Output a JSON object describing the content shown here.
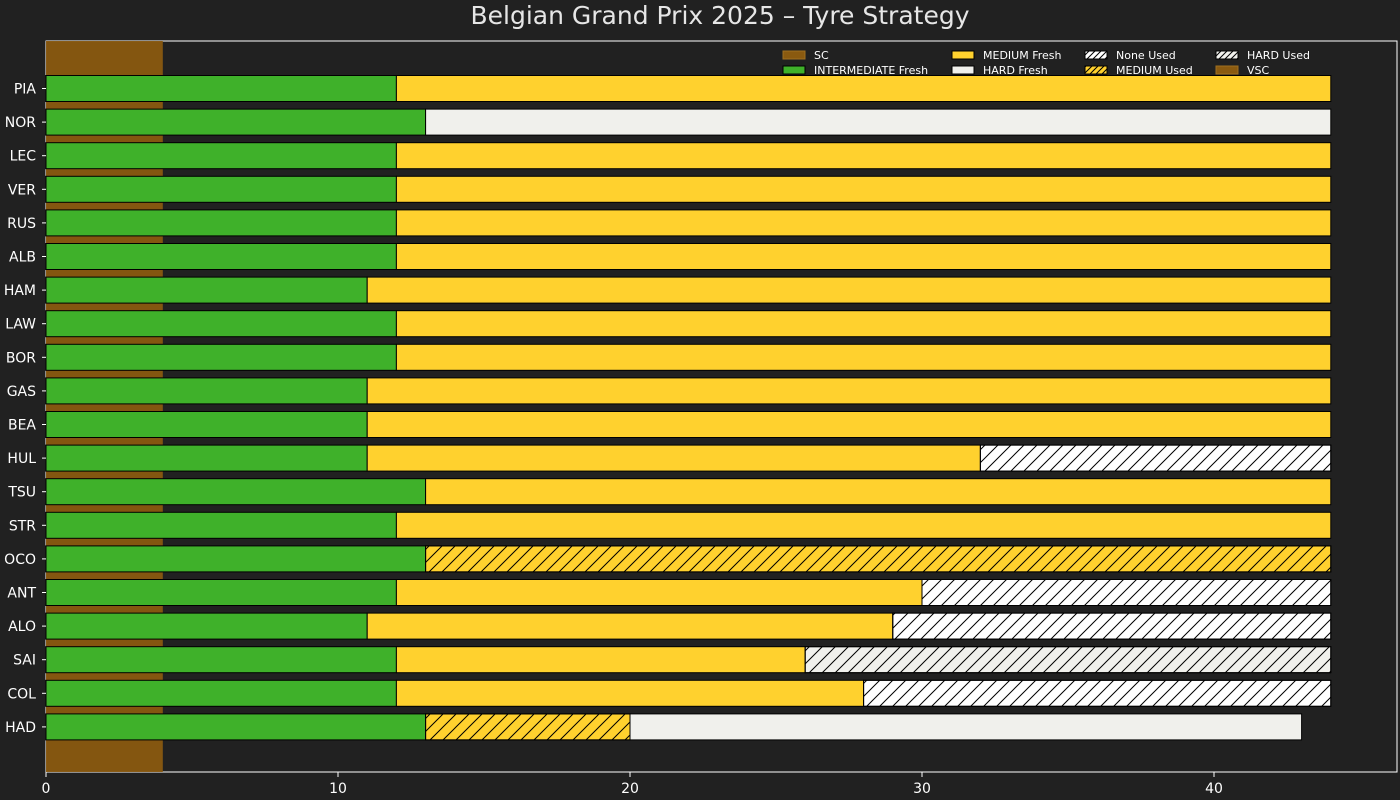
{
  "chart_data": {
    "type": "bar",
    "orientation": "horizontal-stacked",
    "title": "Belgian Grand Prix 2025  –  Tyre Strategy",
    "xlabel": "",
    "ylabel": "",
    "xlim": [
      0,
      46
    ],
    "xticks": [
      0,
      10,
      20,
      30,
      40
    ],
    "grid": false,
    "legend_position": "top-right",
    "colors": {
      "background": "#212121",
      "text": "#ffffff",
      "INTERMEDIATE": "#3fb12a",
      "MEDIUM": "#ffd12e",
      "HARD": "#f0f0ec",
      "None": "#ffffff",
      "SC": "#8a5a10",
      "VSC": "#8a5a10"
    },
    "legend": [
      {
        "label": "SC",
        "compound": "SC",
        "used": false
      },
      {
        "label": "INTERMEDIATE Fresh",
        "compound": "INTERMEDIATE",
        "used": false
      },
      {
        "label": "MEDIUM Fresh",
        "compound": "MEDIUM",
        "used": false
      },
      {
        "label": "HARD Fresh",
        "compound": "HARD",
        "used": false
      },
      {
        "label": "None Used",
        "compound": "None",
        "used": true
      },
      {
        "label": "MEDIUM Used",
        "compound": "MEDIUM",
        "used": true
      },
      {
        "label": "HARD Used",
        "compound": "HARD",
        "used": true
      },
      {
        "label": "VSC",
        "compound": "VSC",
        "used": false
      }
    ],
    "safety_car": {
      "label": "SC",
      "start": 0,
      "end": 4
    },
    "drivers": [
      {
        "name": "PIA",
        "stints": [
          {
            "compound": "INTERMEDIATE",
            "used": false,
            "start": 0,
            "end": 12
          },
          {
            "compound": "MEDIUM",
            "used": false,
            "start": 12,
            "end": 44
          }
        ]
      },
      {
        "name": "NOR",
        "stints": [
          {
            "compound": "INTERMEDIATE",
            "used": false,
            "start": 0,
            "end": 13
          },
          {
            "compound": "HARD",
            "used": false,
            "start": 13,
            "end": 44
          }
        ]
      },
      {
        "name": "LEC",
        "stints": [
          {
            "compound": "INTERMEDIATE",
            "used": false,
            "start": 0,
            "end": 12
          },
          {
            "compound": "MEDIUM",
            "used": false,
            "start": 12,
            "end": 44
          }
        ]
      },
      {
        "name": "VER",
        "stints": [
          {
            "compound": "INTERMEDIATE",
            "used": false,
            "start": 0,
            "end": 12
          },
          {
            "compound": "MEDIUM",
            "used": false,
            "start": 12,
            "end": 44
          }
        ]
      },
      {
        "name": "RUS",
        "stints": [
          {
            "compound": "INTERMEDIATE",
            "used": false,
            "start": 0,
            "end": 12
          },
          {
            "compound": "MEDIUM",
            "used": false,
            "start": 12,
            "end": 44
          }
        ]
      },
      {
        "name": "ALB",
        "stints": [
          {
            "compound": "INTERMEDIATE",
            "used": false,
            "start": 0,
            "end": 12
          },
          {
            "compound": "MEDIUM",
            "used": false,
            "start": 12,
            "end": 44
          }
        ]
      },
      {
        "name": "HAM",
        "stints": [
          {
            "compound": "INTERMEDIATE",
            "used": false,
            "start": 0,
            "end": 11
          },
          {
            "compound": "MEDIUM",
            "used": false,
            "start": 11,
            "end": 44
          }
        ]
      },
      {
        "name": "LAW",
        "stints": [
          {
            "compound": "INTERMEDIATE",
            "used": false,
            "start": 0,
            "end": 12
          },
          {
            "compound": "MEDIUM",
            "used": false,
            "start": 12,
            "end": 44
          }
        ]
      },
      {
        "name": "BOR",
        "stints": [
          {
            "compound": "INTERMEDIATE",
            "used": false,
            "start": 0,
            "end": 12
          },
          {
            "compound": "MEDIUM",
            "used": false,
            "start": 12,
            "end": 44
          }
        ]
      },
      {
        "name": "GAS",
        "stints": [
          {
            "compound": "INTERMEDIATE",
            "used": false,
            "start": 0,
            "end": 11
          },
          {
            "compound": "MEDIUM",
            "used": false,
            "start": 11,
            "end": 44
          }
        ]
      },
      {
        "name": "BEA",
        "stints": [
          {
            "compound": "INTERMEDIATE",
            "used": false,
            "start": 0,
            "end": 11
          },
          {
            "compound": "MEDIUM",
            "used": false,
            "start": 11,
            "end": 44
          }
        ]
      },
      {
        "name": "HUL",
        "stints": [
          {
            "compound": "INTERMEDIATE",
            "used": false,
            "start": 0,
            "end": 11
          },
          {
            "compound": "MEDIUM",
            "used": false,
            "start": 11,
            "end": 32
          },
          {
            "compound": "None",
            "used": true,
            "start": 32,
            "end": 44
          }
        ]
      },
      {
        "name": "TSU",
        "stints": [
          {
            "compound": "INTERMEDIATE",
            "used": false,
            "start": 0,
            "end": 13
          },
          {
            "compound": "MEDIUM",
            "used": false,
            "start": 13,
            "end": 44
          }
        ]
      },
      {
        "name": "STR",
        "stints": [
          {
            "compound": "INTERMEDIATE",
            "used": false,
            "start": 0,
            "end": 12
          },
          {
            "compound": "MEDIUM",
            "used": false,
            "start": 12,
            "end": 44
          }
        ]
      },
      {
        "name": "OCO",
        "stints": [
          {
            "compound": "INTERMEDIATE",
            "used": false,
            "start": 0,
            "end": 13
          },
          {
            "compound": "MEDIUM",
            "used": true,
            "start": 13,
            "end": 44
          }
        ]
      },
      {
        "name": "ANT",
        "stints": [
          {
            "compound": "INTERMEDIATE",
            "used": false,
            "start": 0,
            "end": 12
          },
          {
            "compound": "MEDIUM",
            "used": false,
            "start": 12,
            "end": 30
          },
          {
            "compound": "None",
            "used": true,
            "start": 30,
            "end": 44
          }
        ]
      },
      {
        "name": "ALO",
        "stints": [
          {
            "compound": "INTERMEDIATE",
            "used": false,
            "start": 0,
            "end": 11
          },
          {
            "compound": "MEDIUM",
            "used": false,
            "start": 11,
            "end": 29
          },
          {
            "compound": "None",
            "used": true,
            "start": 29,
            "end": 44
          }
        ]
      },
      {
        "name": "SAI",
        "stints": [
          {
            "compound": "INTERMEDIATE",
            "used": false,
            "start": 0,
            "end": 12
          },
          {
            "compound": "MEDIUM",
            "used": false,
            "start": 12,
            "end": 26
          },
          {
            "compound": "HARD",
            "used": true,
            "start": 26,
            "end": 44
          }
        ]
      },
      {
        "name": "COL",
        "stints": [
          {
            "compound": "INTERMEDIATE",
            "used": false,
            "start": 0,
            "end": 12
          },
          {
            "compound": "MEDIUM",
            "used": false,
            "start": 12,
            "end": 28
          },
          {
            "compound": "None",
            "used": true,
            "start": 28,
            "end": 44
          }
        ]
      },
      {
        "name": "HAD",
        "stints": [
          {
            "compound": "INTERMEDIATE",
            "used": false,
            "start": 0,
            "end": 13
          },
          {
            "compound": "MEDIUM",
            "used": true,
            "start": 13,
            "end": 20
          },
          {
            "compound": "HARD",
            "used": false,
            "start": 20,
            "end": 43
          }
        ]
      }
    ]
  }
}
